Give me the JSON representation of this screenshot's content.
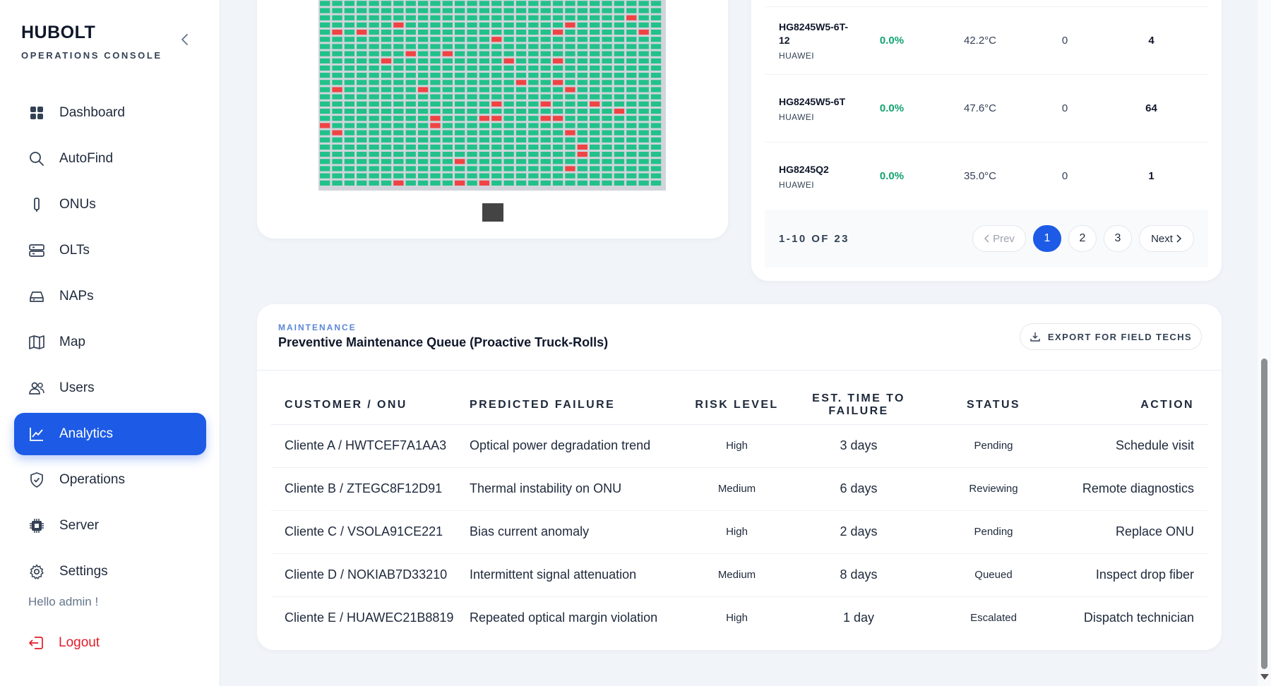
{
  "brand": {
    "title": "HUBOLT",
    "subtitle": "OPERATIONS CONSOLE"
  },
  "sidebar": {
    "items": [
      {
        "label": "Dashboard",
        "icon": "dashboard-icon",
        "active": false
      },
      {
        "label": "AutoFind",
        "icon": "search-icon",
        "active": false
      },
      {
        "label": "ONUs",
        "icon": "onu-device-icon",
        "active": false
      },
      {
        "label": "OLTs",
        "icon": "server-rack-icon",
        "active": false
      },
      {
        "label": "NAPs",
        "icon": "hdd-icon",
        "active": false
      },
      {
        "label": "Map",
        "icon": "map-icon",
        "active": false
      },
      {
        "label": "Users",
        "icon": "users-icon",
        "active": false
      },
      {
        "label": "Analytics",
        "icon": "chart-line-icon",
        "active": true
      },
      {
        "label": "Operations",
        "icon": "shield-icon",
        "active": false
      },
      {
        "label": "Server",
        "icon": "cpu-icon",
        "active": false
      },
      {
        "label": "Settings",
        "icon": "gear-icon",
        "active": false
      }
    ],
    "greeting": "Hello admin !",
    "logout": "Logout"
  },
  "colors": {
    "accent": "#1d5be6",
    "ok": "#10a36e",
    "ok_cell": "#22c18a",
    "fail_cell": "#ef4444",
    "medium": "#c2580c",
    "logout": "#e11d2a"
  },
  "onu_table": {
    "rows": [
      {
        "model": "HG8245W5-6T-12",
        "vendor": "HUAWEI",
        "loss": "0.0%",
        "temp": "42.2°C",
        "alarms": "0",
        "count": "4"
      },
      {
        "model": "HG8245W5-6T",
        "vendor": "HUAWEI",
        "loss": "0.0%",
        "temp": "47.6°C",
        "alarms": "0",
        "count": "64"
      },
      {
        "model": "HG8245Q2",
        "vendor": "HUAWEI",
        "loss": "0.0%",
        "temp": "35.0°C",
        "alarms": "0",
        "count": "1"
      }
    ],
    "pagination": {
      "info": "1-10 OF 23",
      "prev": "Prev",
      "next": "Next",
      "pages": [
        "1",
        "2",
        "3"
      ],
      "current": "1"
    }
  },
  "maintenance": {
    "kicker": "MAINTENANCE",
    "title": "Preventive Maintenance Queue (Proactive Truck-Rolls)",
    "export_label": "EXPORT FOR FIELD TECHS",
    "columns": [
      "CUSTOMER / ONU",
      "PREDICTED FAILURE",
      "RISK LEVEL",
      "EST. TIME TO FAILURE",
      "STATUS",
      "ACTION"
    ],
    "rows": [
      {
        "customer": "Cliente A / HWTCEF7A1AA3",
        "failure": "Optical power degradation trend",
        "risk": "High",
        "ttf": "3 days",
        "status": "Pending",
        "action": "Schedule visit"
      },
      {
        "customer": "Cliente B / ZTEGC8F12D91",
        "failure": "Thermal instability on ONU",
        "risk": "Medium",
        "ttf": "6 days",
        "status": "Reviewing",
        "action": "Remote diagnostics"
      },
      {
        "customer": "Cliente C / VSOLA91CE221",
        "failure": "Bias current anomaly",
        "risk": "High",
        "ttf": "2 days",
        "status": "Pending",
        "action": "Replace ONU"
      },
      {
        "customer": "Cliente D / NOKIAB7D33210",
        "failure": "Intermittent signal attenuation",
        "risk": "Medium",
        "ttf": "8 days",
        "status": "Queued",
        "action": "Inspect drop fiber"
      },
      {
        "customer": "Cliente E / HUAWEC21B8819",
        "failure": "Repeated optical margin violation",
        "risk": "High",
        "ttf": "1 day",
        "status": "Escalated",
        "action": "Dispatch technician"
      }
    ]
  }
}
